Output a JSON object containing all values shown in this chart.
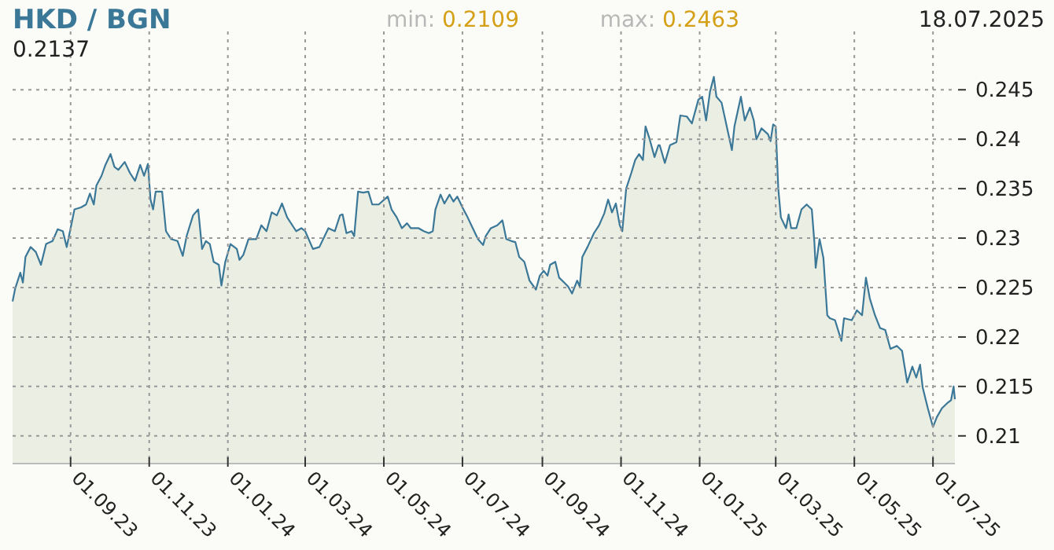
{
  "chart_data": {
    "type": "area",
    "title": "HKD / BGN",
    "annotations": [
      "0.2137",
      "min: 0.2109",
      "max: 0.2463",
      "18.07.2025"
    ],
    "x": [
      "2023-07-18",
      "2023-07-20",
      "2023-07-24",
      "2023-07-26",
      "2023-07-28",
      "2023-08-01",
      "2023-08-05",
      "2023-08-09",
      "2023-08-13",
      "2023-08-18",
      "2023-08-22",
      "2023-08-26",
      "2023-08-29",
      "2023-09-01",
      "2023-09-04",
      "2023-09-09",
      "2023-09-13",
      "2023-09-16",
      "2023-09-19",
      "2023-09-21",
      "2023-09-25",
      "2023-09-28",
      "2023-10-02",
      "2023-10-05",
      "2023-10-08",
      "2023-10-13",
      "2023-10-17",
      "2023-10-21",
      "2023-10-25",
      "2023-10-28",
      "2023-10-31",
      "2023-11-02",
      "2023-11-04",
      "2023-11-06",
      "2023-11-11",
      "2023-11-14",
      "2023-11-18",
      "2023-11-23",
      "2023-11-27",
      "2023-11-30",
      "2023-12-05",
      "2023-12-09",
      "2023-12-12",
      "2023-12-15",
      "2023-12-18",
      "2023-12-21",
      "2023-12-25",
      "2023-12-27",
      "2023-12-30",
      "2024-01-03",
      "2024-01-08",
      "2024-01-10",
      "2024-01-13",
      "2024-01-17",
      "2024-01-23",
      "2024-01-27",
      "2024-01-31",
      "2024-02-04",
      "2024-02-08",
      "2024-02-12",
      "2024-02-16",
      "2024-02-23",
      "2024-02-27",
      "2024-03-01",
      "2024-03-07",
      "2024-03-12",
      "2024-03-19",
      "2024-03-24",
      "2024-03-28",
      "2024-03-30",
      "2024-04-02",
      "2024-04-06",
      "2024-04-08",
      "2024-04-11",
      "2024-04-15",
      "2024-04-19",
      "2024-04-22",
      "2024-04-27",
      "2024-05-04",
      "2024-05-07",
      "2024-05-11",
      "2024-05-15",
      "2024-05-19",
      "2024-05-22",
      "2024-05-28",
      "2024-06-01",
      "2024-06-05",
      "2024-06-08",
      "2024-06-10",
      "2024-06-14",
      "2024-06-17",
      "2024-06-21",
      "2024-06-24",
      "2024-06-27",
      "2024-07-01",
      "2024-07-05",
      "2024-07-09",
      "2024-07-13",
      "2024-07-17",
      "2024-07-19",
      "2024-07-23",
      "2024-07-28",
      "2024-08-01",
      "2024-08-04",
      "2024-08-08",
      "2024-08-11",
      "2024-08-14",
      "2024-08-18",
      "2024-08-22",
      "2024-08-27",
      "2024-08-30",
      "2024-09-02",
      "2024-09-05",
      "2024-09-07",
      "2024-09-11",
      "2024-09-14",
      "2024-09-18",
      "2024-09-21",
      "2024-09-24",
      "2024-09-28",
      "2024-09-30",
      "2024-10-02",
      "2024-10-06",
      "2024-10-11",
      "2024-10-15",
      "2024-10-19",
      "2024-10-22",
      "2024-10-25",
      "2024-10-28",
      "2024-10-31",
      "2024-11-02",
      "2024-11-05",
      "2024-11-09",
      "2024-11-12",
      "2024-11-15",
      "2024-11-18",
      "2024-11-20",
      "2024-11-23",
      "2024-11-27",
      "2024-11-30",
      "2024-12-01",
      "2024-12-05",
      "2024-12-09",
      "2024-12-14",
      "2024-12-17",
      "2024-12-22",
      "2024-12-26",
      "2024-12-31",
      "2025-01-03",
      "2025-01-06",
      "2025-01-09",
      "2025-01-12",
      "2025-01-14",
      "2025-01-18",
      "2025-01-22",
      "2025-01-26",
      "2025-01-28",
      "2025-02-02",
      "2025-02-05",
      "2025-02-09",
      "2025-02-12",
      "2025-02-14",
      "2025-02-18",
      "2025-02-23",
      "2025-02-25",
      "2025-02-27",
      "2025-03-01",
      "2025-03-03",
      "2025-03-05",
      "2025-03-09",
      "2025-03-11",
      "2025-03-13",
      "2025-03-17",
      "2025-03-21",
      "2025-03-25",
      "2025-03-29",
      "2025-03-31",
      "2025-04-01",
      "2025-04-04",
      "2025-04-07",
      "2025-04-10",
      "2025-04-12",
      "2025-04-16",
      "2025-04-21",
      "2025-04-23",
      "2025-04-29",
      "2025-05-03",
      "2025-05-07",
      "2025-05-10",
      "2025-05-13",
      "2025-05-17",
      "2025-05-21",
      "2025-05-25",
      "2025-05-29",
      "2025-06-03",
      "2025-06-07",
      "2025-06-11",
      "2025-06-15",
      "2025-06-18",
      "2025-06-21",
      "2025-06-23",
      "2025-06-27",
      "2025-07-01",
      "2025-07-04",
      "2025-07-08",
      "2025-07-12",
      "2025-07-15",
      "2025-07-17",
      "2025-07-18"
    ],
    "series": [
      {
        "color": "#3b7898",
        "values": [
          0.2236,
          0.2249,
          0.2265,
          0.2255,
          0.2281,
          0.2291,
          0.2286,
          0.2273,
          0.2294,
          0.2297,
          0.2309,
          0.2307,
          0.2291,
          0.231,
          0.2329,
          0.2331,
          0.2334,
          0.2345,
          0.2334,
          0.2353,
          0.2363,
          0.2374,
          0.2385,
          0.2372,
          0.2369,
          0.2377,
          0.2366,
          0.2358,
          0.2374,
          0.2363,
          0.2375,
          0.2339,
          0.2329,
          0.2347,
          0.2347,
          0.2307,
          0.2299,
          0.2297,
          0.2282,
          0.2302,
          0.2323,
          0.2329,
          0.2289,
          0.2297,
          0.2294,
          0.2276,
          0.2273,
          0.2252,
          0.2276,
          0.2294,
          0.2289,
          0.2278,
          0.2283,
          0.2299,
          0.2299,
          0.2313,
          0.2307,
          0.2326,
          0.2323,
          0.2335,
          0.2321,
          0.2307,
          0.231,
          0.2307,
          0.2289,
          0.2291,
          0.231,
          0.2307,
          0.2323,
          0.2324,
          0.2305,
          0.2307,
          0.2302,
          0.2347,
          0.2346,
          0.2347,
          0.2334,
          0.2334,
          0.2342,
          0.2329,
          0.2321,
          0.231,
          0.2315,
          0.231,
          0.231,
          0.2307,
          0.2305,
          0.2307,
          0.2329,
          0.2344,
          0.2335,
          0.2344,
          0.2337,
          0.2342,
          0.2331,
          0.2321,
          0.231,
          0.2299,
          0.2293,
          0.2302,
          0.231,
          0.2313,
          0.2318,
          0.2299,
          0.2297,
          0.2296,
          0.2281,
          0.2276,
          0.2257,
          0.2248,
          0.2262,
          0.2267,
          0.2262,
          0.2273,
          0.2276,
          0.226,
          0.2255,
          0.2251,
          0.2244,
          0.2257,
          0.2251,
          0.2281,
          0.2291,
          0.2305,
          0.2313,
          0.2325,
          0.2339,
          0.2326,
          0.2335,
          0.2313,
          0.2307,
          0.235,
          0.2366,
          0.2379,
          0.2385,
          0.2379,
          0.2413,
          0.2401,
          0.2382,
          0.2394,
          0.2394,
          0.2376,
          0.2394,
          0.2397,
          0.2424,
          0.2423,
          0.2416,
          0.244,
          0.2443,
          0.2419,
          0.2448,
          0.2463,
          0.2443,
          0.2437,
          0.2413,
          0.2389,
          0.2413,
          0.2443,
          0.2419,
          0.2432,
          0.2419,
          0.24,
          0.2411,
          0.2405,
          0.2398,
          0.2415,
          0.2413,
          0.235,
          0.2321,
          0.231,
          0.2324,
          0.231,
          0.231,
          0.2329,
          0.2334,
          0.2329,
          0.2296,
          0.227,
          0.2299,
          0.228,
          0.2222,
          0.2219,
          0.2217,
          0.2196,
          0.2219,
          0.2217,
          0.2227,
          0.2222,
          0.226,
          0.2239,
          0.2222,
          0.2209,
          0.2207,
          0.2188,
          0.2191,
          0.2186,
          0.2154,
          0.217,
          0.2159,
          0.2172,
          0.2149,
          0.2128,
          0.2109,
          0.2119,
          0.2128,
          0.2133,
          0.2136,
          0.215,
          0.2137
        ]
      }
    ],
    "xlim": [
      "2023-07-18",
      "2025-07-18"
    ],
    "xticks": [
      {
        "value": "2023-09-01",
        "label": "01.09.23"
      },
      {
        "value": "2023-11-01",
        "label": "01.11.23"
      },
      {
        "value": "2024-01-01",
        "label": "01.01.24"
      },
      {
        "value": "2024-03-01",
        "label": "01.03.24"
      },
      {
        "value": "2024-05-01",
        "label": "01.05.24"
      },
      {
        "value": "2024-07-01",
        "label": "01.07.24"
      },
      {
        "value": "2024-09-01",
        "label": "01.09.24"
      },
      {
        "value": "2024-11-01",
        "label": "01.11.24"
      },
      {
        "value": "2025-01-01",
        "label": "01.01.25"
      },
      {
        "value": "2025-03-01",
        "label": "01.03.25"
      },
      {
        "value": "2025-05-01",
        "label": "01.05.25"
      },
      {
        "value": "2025-07-01",
        "label": "01.07.25"
      }
    ],
    "ylim": [
      0.2072,
      0.2509
    ],
    "yticks": [
      0.21,
      0.215,
      0.22,
      0.225,
      0.23,
      0.235,
      0.24,
      0.245
    ],
    "grid": true
  }
}
